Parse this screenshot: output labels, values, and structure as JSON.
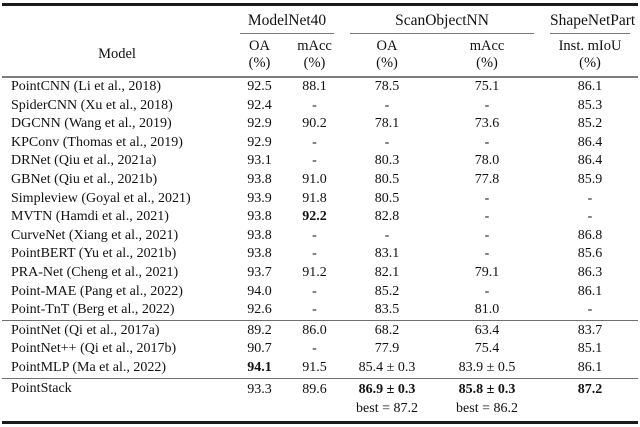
{
  "table": {
    "model_header": "Model",
    "col_groups": [
      {
        "label": "ModelNet40"
      },
      {
        "label": "ScanObjectNN"
      },
      {
        "label": "ShapeNetPart"
      }
    ],
    "sub_headers": [
      {
        "line1": "OA",
        "line2": "(%)"
      },
      {
        "line1": "mAcc",
        "line2": "(%)"
      },
      {
        "line1": "OA",
        "line2": "(%)"
      },
      {
        "line1": "mAcc",
        "line2": "(%)"
      },
      {
        "line1": "Inst. mIoU",
        "line2": "(%)"
      }
    ],
    "sections": [
      {
        "rows": [
          {
            "model": "PointCNN (Li et al., 2018)",
            "cells": [
              {
                "text": "92.5"
              },
              {
                "text": "88.1"
              },
              {
                "text": "78.5"
              },
              {
                "text": "75.1"
              },
              {
                "text": "86.1"
              }
            ]
          },
          {
            "model": "SpiderCNN (Xu et al., 2018)",
            "cells": [
              {
                "text": "92.4"
              },
              {
                "text": "-"
              },
              {
                "text": "-"
              },
              {
                "text": "-"
              },
              {
                "text": "85.3"
              }
            ]
          },
          {
            "model": "DGCNN (Wang et al., 2019)",
            "cells": [
              {
                "text": "92.9"
              },
              {
                "text": "90.2"
              },
              {
                "text": "78.1"
              },
              {
                "text": "73.6"
              },
              {
                "text": "85.2"
              }
            ]
          },
          {
            "model": "KPConv (Thomas et al., 2019)",
            "cells": [
              {
                "text": "92.9"
              },
              {
                "text": "-"
              },
              {
                "text": "-"
              },
              {
                "text": "-"
              },
              {
                "text": "86.4"
              }
            ]
          },
          {
            "model": "DRNet (Qiu et al., 2021a)",
            "cells": [
              {
                "text": "93.1"
              },
              {
                "text": "-"
              },
              {
                "text": "80.3"
              },
              {
                "text": "78.0"
              },
              {
                "text": "86.4"
              }
            ]
          },
          {
            "model": "GBNet (Qiu et al., 2021b)",
            "cells": [
              {
                "text": "93.8"
              },
              {
                "text": "91.0"
              },
              {
                "text": "80.5"
              },
              {
                "text": "77.8"
              },
              {
                "text": "85.9"
              }
            ]
          },
          {
            "model": "Simpleview (Goyal et al., 2021)",
            "cells": [
              {
                "text": "93.9"
              },
              {
                "text": "91.8"
              },
              {
                "text": "80.5"
              },
              {
                "text": "-"
              },
              {
                "text": "-"
              }
            ]
          },
          {
            "model": "MVTN (Hamdi et al., 2021)",
            "cells": [
              {
                "text": "93.8"
              },
              {
                "text": "92.2",
                "bold": true
              },
              {
                "text": "82.8"
              },
              {
                "text": "-"
              },
              {
                "text": "-"
              }
            ]
          },
          {
            "model": "CurveNet (Xiang et al., 2021)",
            "cells": [
              {
                "text": "93.8"
              },
              {
                "text": "-"
              },
              {
                "text": "-"
              },
              {
                "text": "-"
              },
              {
                "text": "86.8"
              }
            ]
          },
          {
            "model": "PointBERT (Yu et al., 2021b)",
            "cells": [
              {
                "text": "93.8"
              },
              {
                "text": "-"
              },
              {
                "text": "83.1"
              },
              {
                "text": "-"
              },
              {
                "text": "85.6"
              }
            ]
          },
          {
            "model": "PRA-Net (Cheng et al., 2021)",
            "cells": [
              {
                "text": "93.7"
              },
              {
                "text": "91.2"
              },
              {
                "text": "82.1"
              },
              {
                "text": "79.1"
              },
              {
                "text": "86.3"
              }
            ]
          },
          {
            "model": "Point-MAE (Pang et al., 2022)",
            "cells": [
              {
                "text": "94.0"
              },
              {
                "text": "-"
              },
              {
                "text": "85.2"
              },
              {
                "text": "-"
              },
              {
                "text": "86.1"
              }
            ]
          },
          {
            "model": "Point-TnT (Berg et al., 2022)",
            "cells": [
              {
                "text": "92.6"
              },
              {
                "text": "-"
              },
              {
                "text": "83.5"
              },
              {
                "text": "81.0"
              },
              {
                "text": "-"
              }
            ]
          }
        ]
      },
      {
        "rows": [
          {
            "model": "PointNet (Qi et al., 2017a)",
            "cells": [
              {
                "text": "89.2"
              },
              {
                "text": "86.0"
              },
              {
                "text": "68.2"
              },
              {
                "text": "63.4"
              },
              {
                "text": "83.7"
              }
            ]
          },
          {
            "model": "PointNet++ (Qi et al., 2017b)",
            "cells": [
              {
                "text": "90.7"
              },
              {
                "text": "-"
              },
              {
                "text": "77.9"
              },
              {
                "text": "75.4"
              },
              {
                "text": "85.1"
              }
            ]
          },
          {
            "model": "PointMLP (Ma et al., 2022)",
            "cells": [
              {
                "text": "94.1",
                "bold": true
              },
              {
                "text": "91.5"
              },
              {
                "text": "85.4 ± 0.3"
              },
              {
                "text": "83.9 ± 0.5"
              },
              {
                "text": "86.1"
              }
            ]
          }
        ]
      },
      {
        "rows": [
          {
            "model": "PointStack",
            "tall": true,
            "cells": [
              {
                "text": "93.3"
              },
              {
                "text": "89.6"
              },
              {
                "text": "86.9 ± 0.3",
                "bold": true,
                "sub": "best = 87.2"
              },
              {
                "text": "85.8 ± 0.3",
                "bold": true,
                "sub": "best = 86.2"
              },
              {
                "text": "87.2",
                "bold": true
              }
            ]
          }
        ]
      }
    ]
  }
}
